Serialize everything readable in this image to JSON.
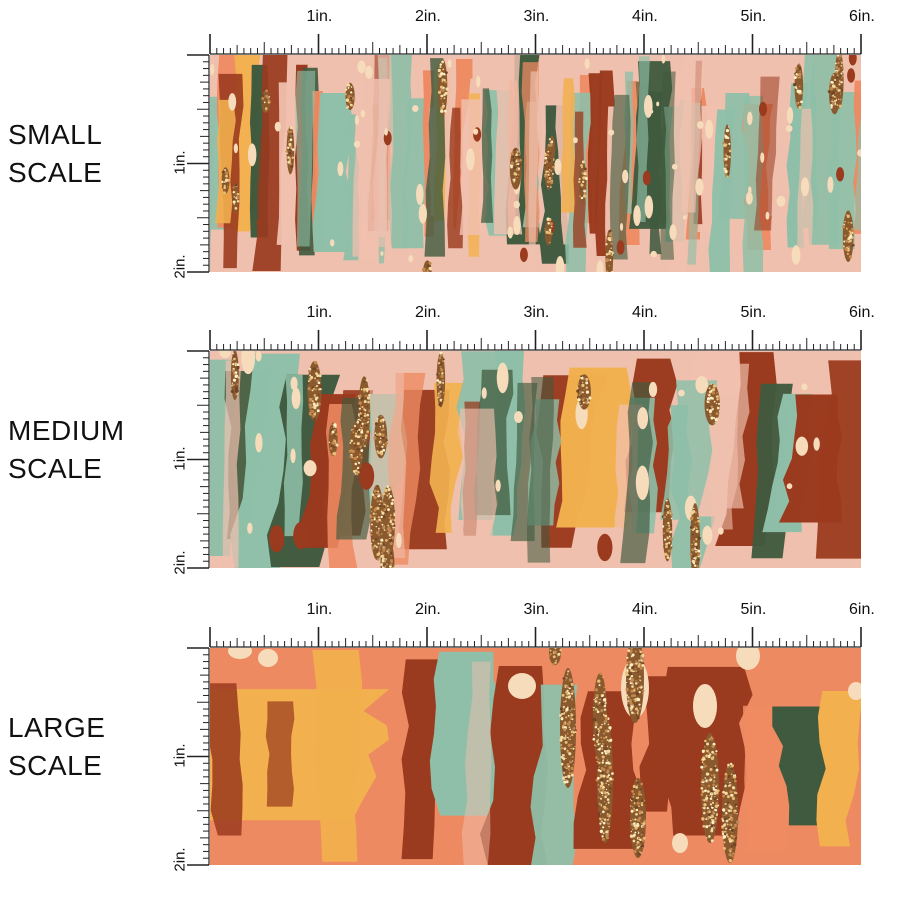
{
  "scales": [
    {
      "label_line1": "SMALL",
      "label_line2": "SCALE",
      "pattern": "small"
    },
    {
      "label_line1": "MEDIUM",
      "label_line2": "SCALE",
      "pattern": "medium"
    },
    {
      "label_line1": "LARGE",
      "label_line2": "SCALE",
      "pattern": "large"
    }
  ],
  "ruler": {
    "horizontal_labels": [
      "1in.",
      "2in.",
      "3in.",
      "4in.",
      "5in.",
      "6in."
    ],
    "vertical_labels": [
      "1in.",
      "2in."
    ]
  },
  "colors": {
    "rust": "#9a3a1e",
    "mustard": "#f2b04e",
    "sage": "#8fbfa8",
    "forest": "#3f5a3e",
    "blush": "#f0c0ae",
    "coral": "#ee8a62",
    "cream": "#f7dcbb",
    "gold_glitter": "#c79456"
  }
}
